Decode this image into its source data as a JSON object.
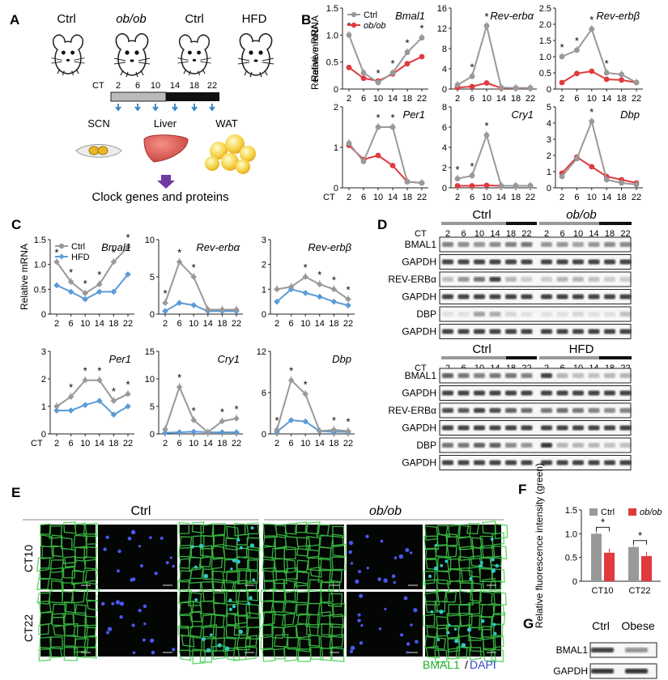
{
  "panel_letters": {
    "A": "A",
    "B": "B",
    "C": "C",
    "D": "D",
    "E": "E",
    "F": "F",
    "G": "G"
  },
  "panelA": {
    "mice": [
      "Ctrl",
      "ob/ob",
      "Ctrl",
      "HFD"
    ],
    "ct_label": "CT",
    "ct_ticks": [
      "2",
      "6",
      "10",
      "14",
      "18",
      "22"
    ],
    "tissues": [
      "SCN",
      "Liver",
      "WAT"
    ],
    "caption": "Clock genes and proteins"
  },
  "colors": {
    "ctrl": "#999999",
    "obob": "#e0393e",
    "hfd": "#5b9bd5",
    "green": "#22aa22",
    "blue": "#3344cc"
  },
  "chart_data": [
    {
      "panel": "B",
      "type": "line",
      "gene": "Bmal1",
      "x": [
        2,
        6,
        10,
        14,
        18,
        22
      ],
      "ylim": [
        0,
        1.5
      ],
      "yticks": [
        "0",
        "0.5",
        "1.0",
        "1.5"
      ],
      "ylabel": "Relative mRNA",
      "series": [
        {
          "name": "Ctrl",
          "values": [
            1.0,
            0.3,
            0.12,
            0.3,
            0.68,
            0.95
          ]
        },
        {
          "name": "ob/ob",
          "values": [
            0.4,
            0.2,
            0.15,
            0.28,
            0.47,
            0.6
          ]
        }
      ],
      "stars": [
        2,
        10,
        14,
        18,
        22
      ],
      "legend": [
        "Ctrl",
        "ob/ob"
      ]
    },
    {
      "panel": "B",
      "type": "line",
      "gene": "Rev-erbα",
      "x": [
        2,
        6,
        10,
        14,
        18,
        22
      ],
      "ylim": [
        0,
        16
      ],
      "yticks": [
        "0",
        "4",
        "8",
        "12",
        "16"
      ],
      "series": [
        {
          "name": "Ctrl",
          "values": [
            0.8,
            2.5,
            12.5,
            0.3,
            0.2,
            0.2
          ]
        },
        {
          "name": "ob/ob",
          "values": [
            0.3,
            0.5,
            1.2,
            0.2,
            0.2,
            0.2
          ]
        }
      ],
      "stars": [
        6,
        10
      ]
    },
    {
      "panel": "B",
      "type": "line",
      "gene": "Rev-erbβ",
      "x": [
        2,
        6,
        10,
        14,
        18,
        22
      ],
      "ylim": [
        0,
        2.5
      ],
      "yticks": [
        "0",
        "0.5",
        "1.0",
        "1.5",
        "2.0",
        "2.5"
      ],
      "series": [
        {
          "name": "Ctrl",
          "values": [
            1.0,
            1.2,
            1.85,
            0.5,
            0.45,
            0.2
          ]
        },
        {
          "name": "ob/ob",
          "values": [
            0.2,
            0.48,
            0.55,
            0.3,
            0.28,
            0.2
          ]
        }
      ],
      "stars": [
        2,
        6,
        10,
        14
      ]
    },
    {
      "panel": "B",
      "type": "line",
      "gene": "Per1",
      "x": [
        2,
        6,
        10,
        14,
        18,
        22
      ],
      "ylim": [
        0,
        2
      ],
      "yticks": [
        "0",
        "1",
        "2"
      ],
      "series": [
        {
          "name": "Ctrl",
          "values": [
            1.1,
            0.65,
            1.5,
            1.5,
            0.15,
            0.12
          ]
        },
        {
          "name": "ob/ob",
          "values": [
            1.05,
            0.7,
            0.8,
            0.55,
            0.15,
            0.12
          ]
        }
      ],
      "stars": [
        10,
        14
      ]
    },
    {
      "panel": "B",
      "type": "line",
      "gene": "Cry1",
      "x": [
        2,
        6,
        10,
        14,
        18,
        22
      ],
      "ylim": [
        0,
        8
      ],
      "yticks": [
        "0",
        "2",
        "4",
        "6",
        "8"
      ],
      "series": [
        {
          "name": "Ctrl",
          "values": [
            0.9,
            1.2,
            5.2,
            0.2,
            0.2,
            0.2
          ]
        },
        {
          "name": "ob/ob",
          "values": [
            0.2,
            0.2,
            0.25,
            0.2,
            0.2,
            0.2
          ]
        }
      ],
      "stars": [
        2,
        6,
        10
      ]
    },
    {
      "panel": "B",
      "type": "line",
      "gene": "Dbp",
      "x": [
        2,
        6,
        10,
        14,
        18,
        22
      ],
      "ylim": [
        0,
        5
      ],
      "yticks": [
        "0",
        "1",
        "2",
        "3",
        "4",
        "5"
      ],
      "series": [
        {
          "name": "Ctrl",
          "values": [
            0.7,
            1.8,
            4.1,
            0.5,
            0.3,
            0.2
          ]
        },
        {
          "name": "ob/ob",
          "values": [
            0.9,
            1.9,
            1.3,
            0.7,
            0.5,
            0.3
          ]
        }
      ],
      "stars": [
        10
      ]
    },
    {
      "panel": "C",
      "type": "line",
      "gene": "Bmal1",
      "x": [
        2,
        6,
        10,
        14,
        18,
        22
      ],
      "ylim": [
        0,
        1.5
      ],
      "yticks": [
        "0",
        "0.5",
        "1.0",
        "1.5"
      ],
      "ylabel": "Relative mRNA",
      "series": [
        {
          "name": "Ctrl",
          "values": [
            1.05,
            0.65,
            0.42,
            0.6,
            1.05,
            1.35
          ]
        },
        {
          "name": "HFD",
          "values": [
            0.58,
            0.45,
            0.3,
            0.45,
            0.45,
            0.8
          ]
        }
      ],
      "stars": [
        2,
        6,
        10,
        14,
        18,
        22
      ],
      "legend": [
        "Ctrl",
        "HFD"
      ]
    },
    {
      "panel": "C",
      "type": "line",
      "gene": "Rev-erbα",
      "x": [
        2,
        6,
        10,
        14,
        18,
        22
      ],
      "ylim": [
        0,
        10
      ],
      "yticks": [
        "0",
        "5",
        "10"
      ],
      "series": [
        {
          "name": "Ctrl",
          "values": [
            1.5,
            7.0,
            5.0,
            0.6,
            0.6,
            0.6
          ]
        },
        {
          "name": "HFD",
          "values": [
            0.4,
            1.5,
            1.2,
            0.4,
            0.4,
            0.4
          ]
        }
      ],
      "stars": [
        2,
        6,
        10
      ]
    },
    {
      "panel": "C",
      "type": "line",
      "gene": "Rev-erbβ",
      "x": [
        2,
        6,
        10,
        14,
        18,
        22
      ],
      "ylim": [
        0,
        3
      ],
      "yticks": [
        "0",
        "1",
        "2",
        "3"
      ],
      "series": [
        {
          "name": "Ctrl",
          "values": [
            1.0,
            1.1,
            1.5,
            1.2,
            1.0,
            0.6
          ]
        },
        {
          "name": "HFD",
          "values": [
            0.5,
            1.0,
            0.85,
            0.7,
            0.5,
            0.35
          ]
        }
      ],
      "stars": [
        10,
        14,
        18,
        22
      ]
    },
    {
      "panel": "C",
      "type": "line",
      "gene": "Per1",
      "x": [
        2,
        6,
        10,
        14,
        18,
        22
      ],
      "ylim": [
        0,
        3
      ],
      "yticks": [
        "0",
        "1",
        "2",
        "3"
      ],
      "series": [
        {
          "name": "Ctrl",
          "values": [
            1.0,
            1.35,
            1.95,
            1.95,
            1.2,
            1.45
          ]
        },
        {
          "name": "HFD",
          "values": [
            0.85,
            0.85,
            1.05,
            1.2,
            0.7,
            1.0
          ]
        }
      ],
      "stars": [
        6,
        10,
        14,
        18,
        22
      ]
    },
    {
      "panel": "C",
      "type": "line",
      "gene": "Cry1",
      "x": [
        2,
        6,
        10,
        14,
        18,
        22
      ],
      "ylim": [
        0,
        15
      ],
      "yticks": [
        "0",
        "5",
        "10",
        "15"
      ],
      "series": [
        {
          "name": "Ctrl",
          "values": [
            0.8,
            8.5,
            2.5,
            0.3,
            2.3,
            2.8
          ]
        },
        {
          "name": "HFD",
          "values": [
            0.2,
            0.3,
            0.4,
            0.3,
            0.3,
            0.3
          ]
        }
      ],
      "stars": [
        6,
        10,
        18,
        22
      ]
    },
    {
      "panel": "C",
      "type": "line",
      "gene": "Dbp",
      "x": [
        2,
        6,
        10,
        14,
        18,
        22
      ],
      "ylim": [
        0,
        12
      ],
      "yticks": [
        "0",
        "6",
        "12"
      ],
      "series": [
        {
          "name": "Ctrl",
          "values": [
            0.6,
            7.8,
            5.8,
            0.4,
            0.6,
            0.4
          ]
        },
        {
          "name": "HFD",
          "values": [
            0.3,
            2.0,
            1.8,
            0.4,
            0.3,
            0.3
          ]
        }
      ],
      "stars": [
        2,
        6,
        10,
        18,
        22
      ]
    },
    {
      "panel": "F",
      "type": "bar",
      "categories": [
        "CT10",
        "CT22"
      ],
      "ylabel": "Relative fluorescence intensity (green)",
      "ylim": [
        0,
        1.5
      ],
      "yticks": [
        "0",
        "0.5",
        "1.0",
        "1.5"
      ],
      "series": [
        {
          "name": "Ctrl",
          "values": [
            1.0,
            0.72
          ]
        },
        {
          "name": "ob/ob",
          "values": [
            0.6,
            0.53
          ]
        }
      ],
      "legend": [
        "Ctrl",
        "ob/ob"
      ],
      "stars": [
        "*",
        "*"
      ]
    }
  ],
  "panelD": {
    "ct_label": "CT",
    "ct_ticks": [
      "2",
      "6",
      "10",
      "14",
      "18",
      "22"
    ],
    "groups_top": [
      "Ctrl",
      "ob/ob"
    ],
    "groups_bottom": [
      "Ctrl",
      "HFD"
    ],
    "rows_top": [
      "BMAL1",
      "GAPDH",
      "REV-ERBα",
      "GAPDH",
      "DBP",
      "GAPDH"
    ],
    "rows_bottom": [
      "BMAL1",
      "GAPDH",
      "REV-ERBα",
      "GAPDH",
      "DBP",
      "GAPDH"
    ]
  },
  "panelE": {
    "groups": [
      "Ctrl",
      "ob/ob"
    ],
    "rows": [
      "CT10",
      "CT22"
    ],
    "legend_green": "BMAL1",
    "legend_sep": "/",
    "legend_blue": "DAPI"
  },
  "panelG": {
    "columns": [
      "Ctrl",
      "Obese"
    ],
    "rows": [
      "BMAL1",
      "GAPDH"
    ]
  }
}
